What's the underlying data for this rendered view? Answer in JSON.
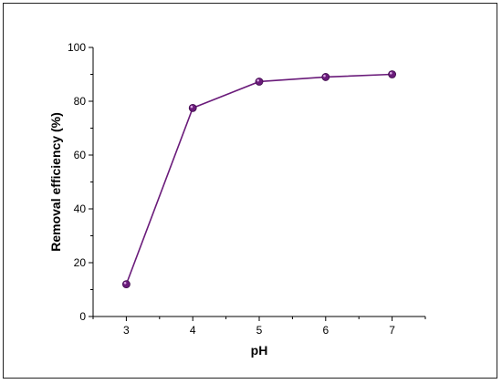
{
  "chart_data": {
    "type": "line",
    "title": "",
    "xlabel": "pH",
    "ylabel": "Removal efficiency (%)",
    "x": [
      3,
      4,
      5,
      6,
      7
    ],
    "series": [
      {
        "values": [
          12,
          77.5,
          87.3,
          89,
          90
        ],
        "color": "#6a1b7a"
      }
    ],
    "xlim": [
      2.5,
      7.5
    ],
    "ylim": [
      0,
      100
    ],
    "xticks": [
      3,
      4,
      5,
      6,
      7
    ],
    "yticks": [
      0,
      20,
      40,
      60,
      80,
      100
    ],
    "grid": false,
    "legend": "none"
  }
}
